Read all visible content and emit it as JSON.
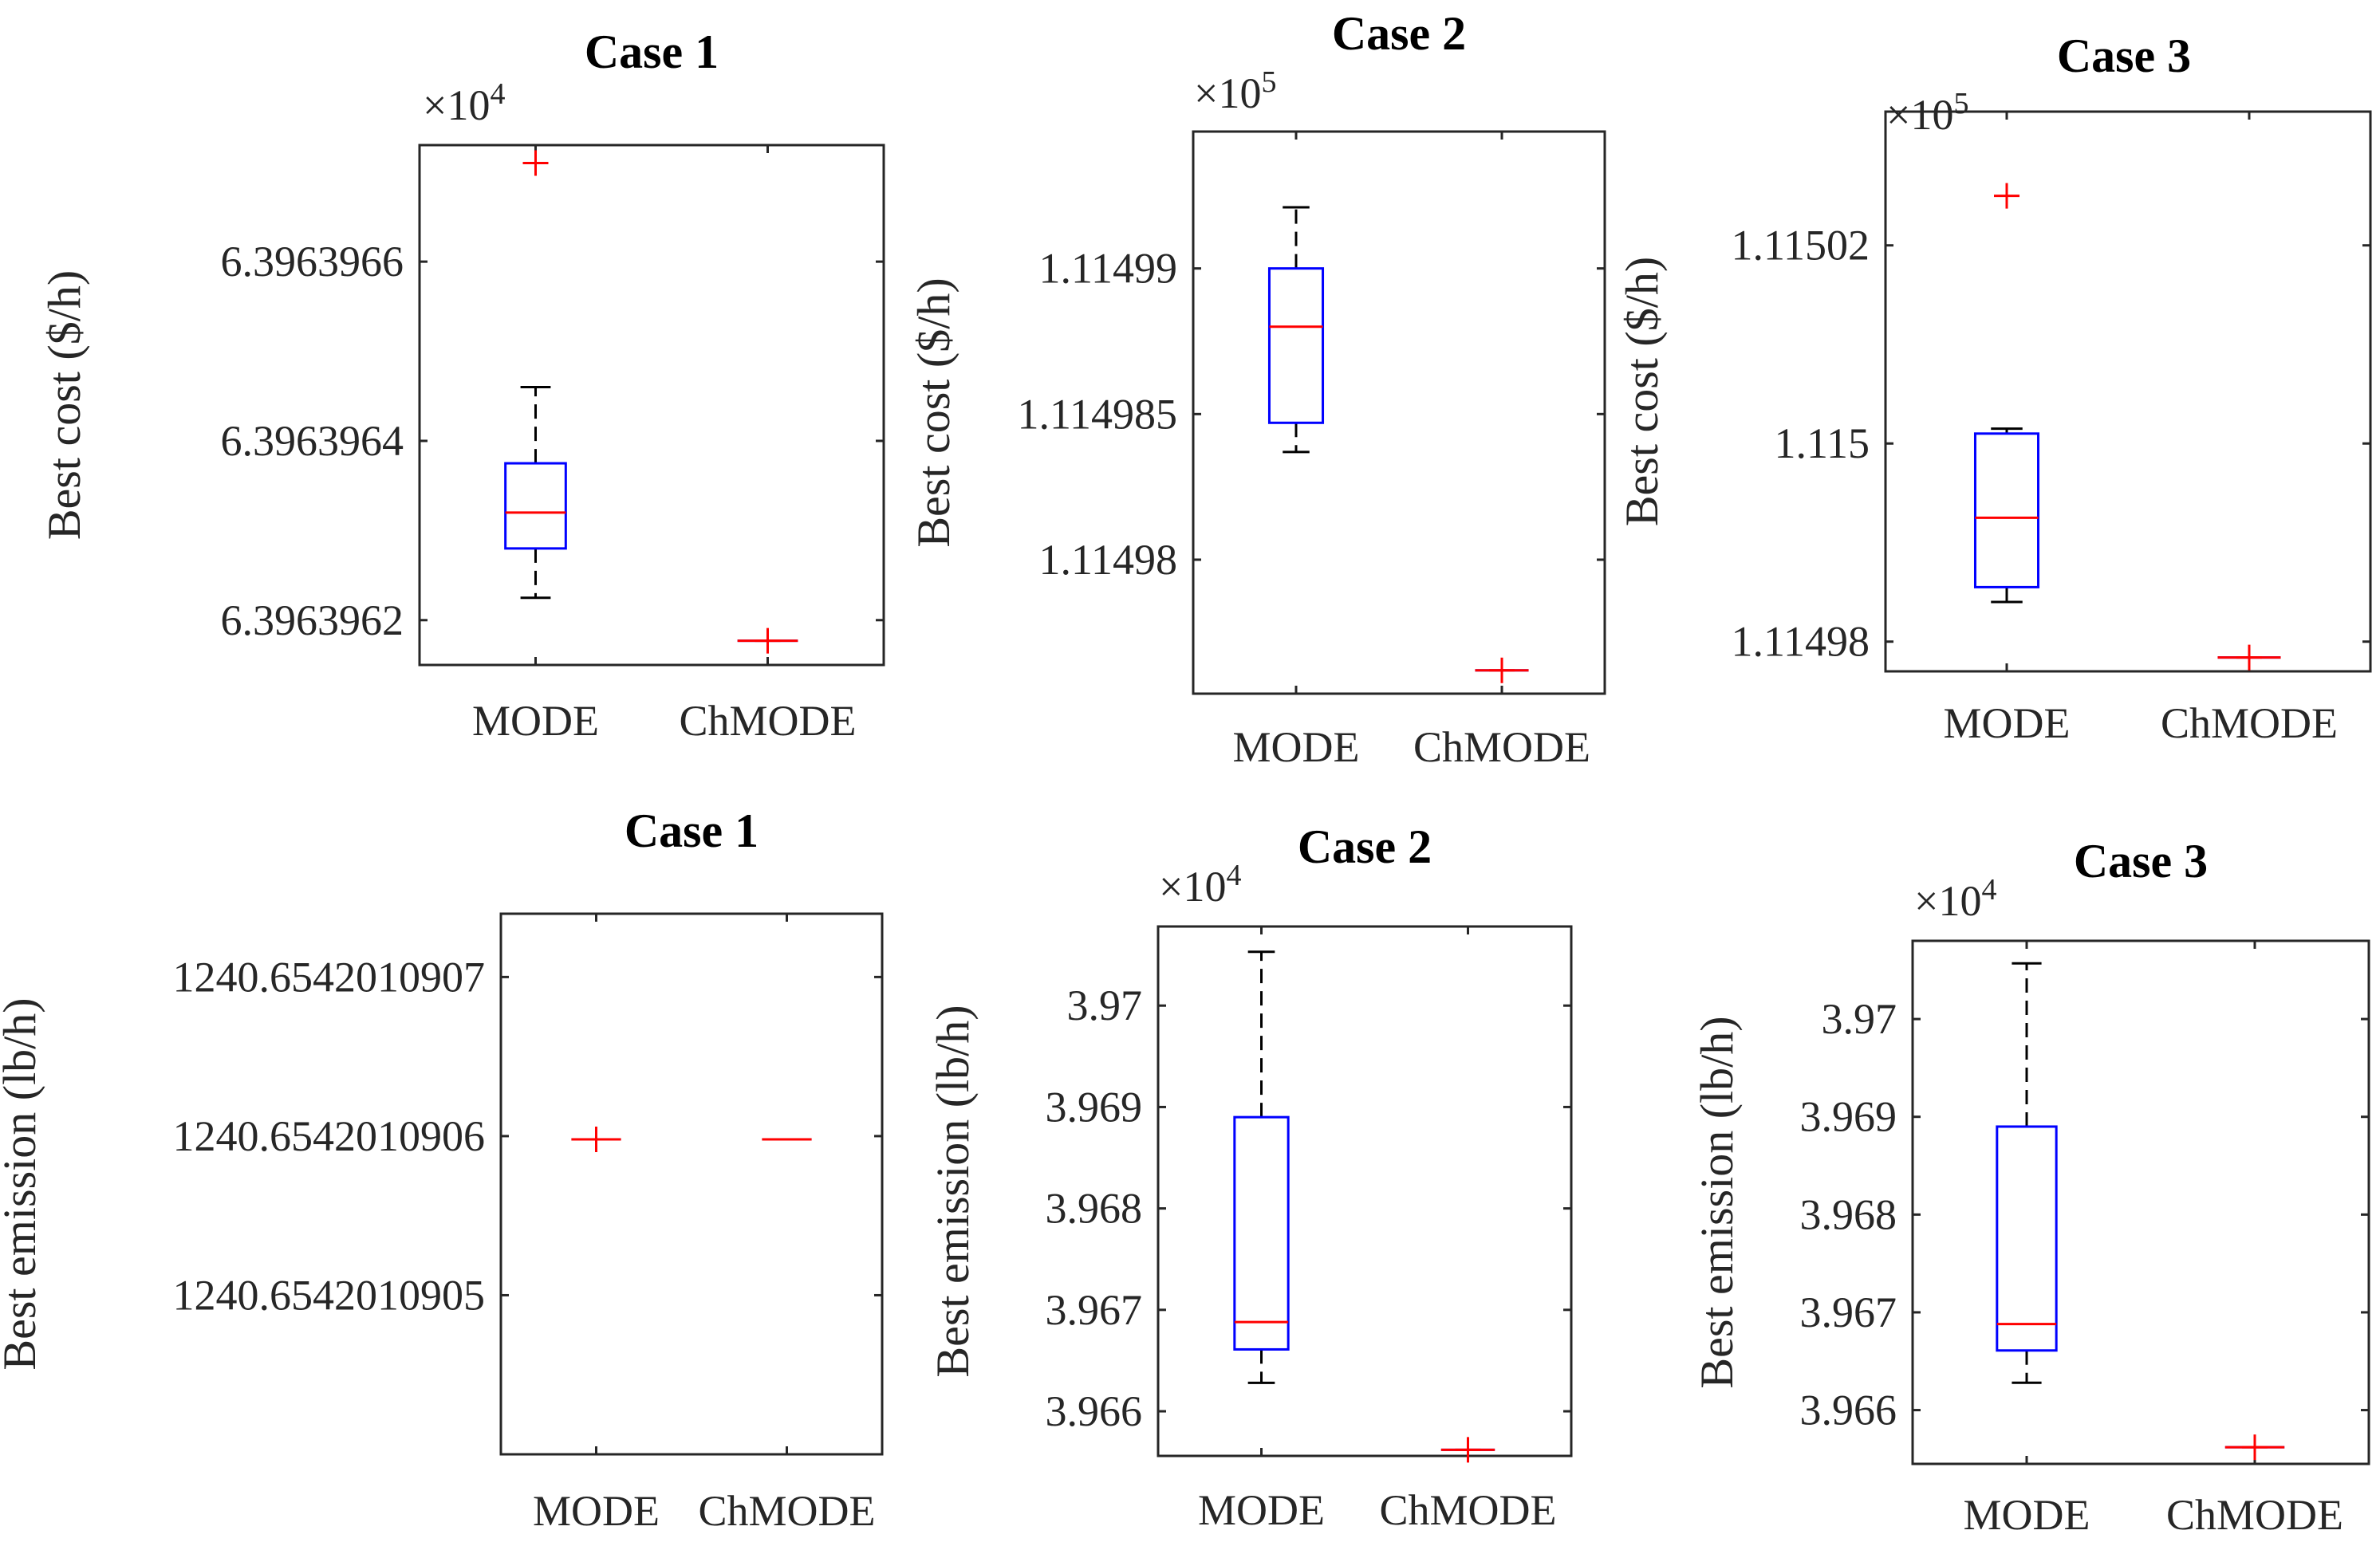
{
  "figure": {
    "style": "boxplot grid",
    "colors": {
      "box": "#0000ff",
      "median": "#ff0000",
      "outlier": "#ff0000",
      "whisker": "#000000",
      "axis": "#262626"
    }
  },
  "chart_data": [
    {
      "type": "box",
      "title": "Case 1",
      "ylabel": "Best cost ($/h)",
      "multiplier_base": "×10",
      "multiplier_exp": "4",
      "ylim": [
        6.39639615,
        6.39639673
      ],
      "yticks": [
        6.3963962,
        6.3963964,
        6.3963966
      ],
      "ytick_labels": [
        "6.3963962",
        "6.3963964",
        "6.3963966"
      ],
      "categories": [
        "MODE",
        "ChMODE"
      ],
      "boxes": [
        {
          "q1": 6.39639628,
          "median": 6.39639632,
          "q3": 6.396396375,
          "wmin": 6.396396225,
          "wmax": 6.39639646,
          "outliers": [
            6.39639671
          ]
        },
        {
          "q1": 6.396396177,
          "median": 6.396396177,
          "q3": 6.396396177,
          "wmin": 6.396396177,
          "wmax": 6.396396177,
          "outliers": [
            6.396396177
          ]
        }
      ]
    },
    {
      "type": "box",
      "title": "Case 2",
      "ylabel": "Best cost ($/h)",
      "multiplier_base": "×10",
      "multiplier_exp": "5",
      "ylim": [
        1.1149754,
        1.1149947
      ],
      "yticks": [
        1.11498,
        1.114985,
        1.11499
      ],
      "ytick_labels": [
        "1.11498",
        "1.114985",
        "1.11499"
      ],
      "categories": [
        "MODE",
        "ChMODE"
      ],
      "boxes": [
        {
          "q1": 1.1149847,
          "median": 1.114988,
          "q3": 1.11499,
          "wmin": 1.1149837,
          "wmax": 1.1149921,
          "outliers": []
        },
        {
          "q1": 1.1149762,
          "median": 1.1149762,
          "q3": 1.1149762,
          "wmin": 1.1149762,
          "wmax": 1.1149762,
          "outliers": [
            1.1149762
          ]
        }
      ]
    },
    {
      "type": "box",
      "title": "Case 3",
      "ylabel": "Best cost ($/h)",
      "multiplier_base": "×10",
      "multiplier_exp": "5",
      "ylim": [
        1.114977,
        1.1150335
      ],
      "yticks": [
        1.11498,
        1.115,
        1.11502
      ],
      "ytick_labels": [
        "1.11498",
        "1.115",
        "1.11502"
      ],
      "categories": [
        "MODE",
        "ChMODE"
      ],
      "boxes": [
        {
          "q1": 1.1149855,
          "median": 1.1149925,
          "q3": 1.115001,
          "wmin": 1.114984,
          "wmax": 1.1150015,
          "outliers": [
            1.115025
          ]
        },
        {
          "q1": 1.1149784,
          "median": 1.1149784,
          "q3": 1.1149784,
          "wmin": 1.1149784,
          "wmax": 1.1149784,
          "outliers": [
            1.1149784
          ]
        }
      ]
    },
    {
      "type": "box",
      "title": "Case 1",
      "ylabel": "Best emission (lb/h)",
      "multiplier_base": "",
      "multiplier_exp": "",
      "ylim": [
        1240.6542010904,
        1240.65420109074
      ],
      "yticks": [
        1240.6542010905,
        1240.6542010906,
        1240.6542010907
      ],
      "ytick_labels": [
        "1240.6542010905",
        "1240.6542010906",
        "1240.6542010907"
      ],
      "categories": [
        "MODE",
        "ChMODE"
      ],
      "boxes": [
        {
          "q1": 1240.654201090598,
          "median": 1240.654201090598,
          "q3": 1240.654201090598,
          "wmin": 1240.654201090598,
          "wmax": 1240.654201090598,
          "outliers": [
            1240.654201090598
          ]
        },
        {
          "q1": 1240.654201090598,
          "median": 1240.654201090598,
          "q3": 1240.654201090598,
          "wmin": 1240.654201090598,
          "wmax": 1240.654201090598,
          "outliers": []
        }
      ]
    },
    {
      "type": "box",
      "title": "Case 2",
      "ylabel": "Best emission (lb/h)",
      "multiplier_base": "×10",
      "multiplier_exp": "4",
      "ylim": [
        3.96556,
        3.97078
      ],
      "yticks": [
        3.966,
        3.967,
        3.968,
        3.969,
        3.97
      ],
      "ytick_labels": [
        "3.966",
        "3.967",
        "3.968",
        "3.969",
        "3.97"
      ],
      "categories": [
        "MODE",
        "ChMODE"
      ],
      "boxes": [
        {
          "q1": 3.96661,
          "median": 3.96688,
          "q3": 3.9689,
          "wmin": 3.96628,
          "wmax": 3.97053,
          "outliers": []
        },
        {
          "q1": 3.96562,
          "median": 3.96562,
          "q3": 3.96562,
          "wmin": 3.96562,
          "wmax": 3.96562,
          "outliers": [
            3.96562
          ]
        }
      ]
    },
    {
      "type": "box",
      "title": "Case 3",
      "ylabel": "Best emission (lb/h)",
      "multiplier_base": "×10",
      "multiplier_exp": "4",
      "ylim": [
        3.96545,
        3.9708
      ],
      "yticks": [
        3.966,
        3.967,
        3.968,
        3.969,
        3.97
      ],
      "ytick_labels": [
        "3.966",
        "3.967",
        "3.968",
        "3.969",
        "3.97"
      ],
      "categories": [
        "MODE",
        "ChMODE"
      ],
      "boxes": [
        {
          "q1": 3.96661,
          "median": 3.96688,
          "q3": 3.9689,
          "wmin": 3.96628,
          "wmax": 3.97057,
          "outliers": []
        },
        {
          "q1": 3.96562,
          "median": 3.96562,
          "q3": 3.96562,
          "wmin": 3.96562,
          "wmax": 3.96562,
          "outliers": [
            3.96562
          ]
        }
      ]
    }
  ]
}
